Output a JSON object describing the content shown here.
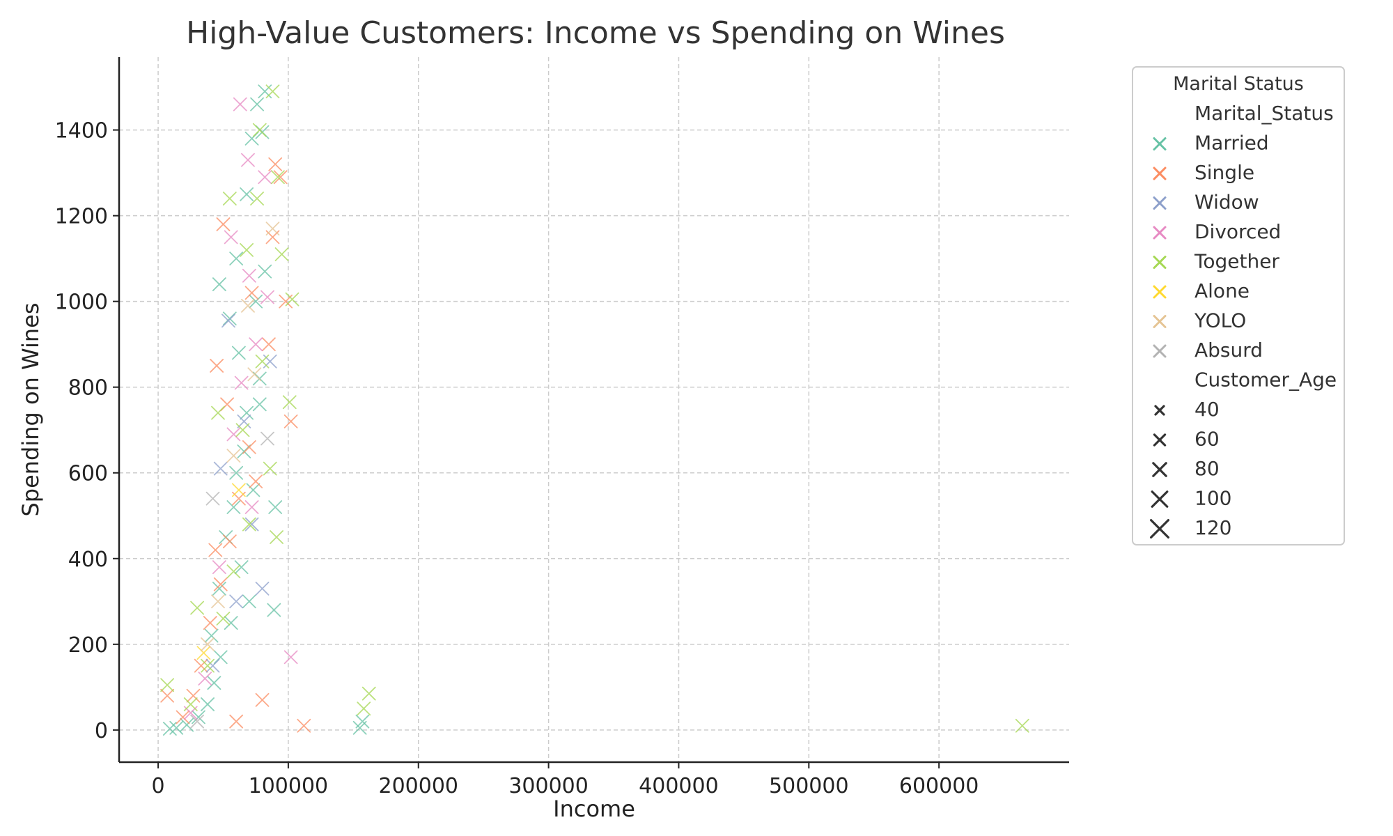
{
  "chart_data": {
    "type": "scatter",
    "title": "High-Value Customers: Income vs Spending on Wines",
    "xlabel": "Income",
    "ylabel": "Spending on Wines",
    "xlim": [
      -30000,
      700000
    ],
    "ylim": [
      -75,
      1570
    ],
    "xticks": [
      0,
      100000,
      200000,
      300000,
      400000,
      500000,
      600000
    ],
    "yticks": [
      0,
      200,
      400,
      600,
      800,
      1000,
      1200,
      1400
    ],
    "grid": true,
    "legend": {
      "title": "Marital Status",
      "placement": "outside-right",
      "hue_title": "Marital_Status",
      "size_title": "Customer_Age",
      "size_levels": [
        "40",
        "60",
        "80",
        "100",
        "120"
      ]
    },
    "marker": "x",
    "series": [
      {
        "name": "Married",
        "color": "#66c2a5",
        "points": [
          [
            82000,
            1490
          ],
          [
            76000,
            1460
          ],
          [
            72000,
            1380
          ],
          [
            80000,
            1395
          ],
          [
            60000,
            1100
          ],
          [
            47000,
            1040
          ],
          [
            68000,
            1250
          ],
          [
            82000,
            1070
          ],
          [
            75000,
            1000
          ],
          [
            55000,
            960
          ],
          [
            78000,
            820
          ],
          [
            68000,
            740
          ],
          [
            60000,
            600
          ],
          [
            73000,
            560
          ],
          [
            90000,
            520
          ],
          [
            52000,
            450
          ],
          [
            64000,
            380
          ],
          [
            70000,
            300
          ],
          [
            56000,
            250
          ],
          [
            48000,
            170
          ],
          [
            43000,
            110
          ],
          [
            38000,
            60
          ],
          [
            31000,
            30
          ],
          [
            22000,
            12
          ],
          [
            14000,
            5
          ],
          [
            9000,
            3
          ],
          [
            155000,
            5
          ],
          [
            157000,
            20
          ],
          [
            78000,
            760
          ],
          [
            66000,
            650
          ],
          [
            58000,
            520
          ],
          [
            47000,
            330
          ],
          [
            41000,
            220
          ],
          [
            89000,
            280
          ],
          [
            62000,
            880
          ]
        ]
      },
      {
        "name": "Single",
        "color": "#fc8d62",
        "points": [
          [
            90000,
            1320
          ],
          [
            94000,
            1290
          ],
          [
            88000,
            1150
          ],
          [
            50000,
            1180
          ],
          [
            72000,
            1020
          ],
          [
            98000,
            1000
          ],
          [
            102000,
            720
          ],
          [
            85000,
            900
          ],
          [
            45000,
            850
          ],
          [
            70000,
            660
          ],
          [
            62000,
            540
          ],
          [
            55000,
            440
          ],
          [
            48000,
            340
          ],
          [
            40000,
            250
          ],
          [
            33000,
            150
          ],
          [
            27000,
            80
          ],
          [
            19000,
            30
          ],
          [
            7000,
            80
          ],
          [
            112000,
            10
          ],
          [
            80000,
            70
          ],
          [
            60000,
            20
          ],
          [
            53000,
            760
          ],
          [
            75000,
            580
          ],
          [
            44000,
            420
          ]
        ]
      },
      {
        "name": "Widow",
        "color": "#8da0cb",
        "points": [
          [
            54000,
            955
          ],
          [
            86000,
            860
          ],
          [
            72000,
            480
          ],
          [
            60000,
            300
          ],
          [
            42000,
            150
          ],
          [
            66000,
            720
          ],
          [
            80000,
            330
          ],
          [
            48000,
            610
          ]
        ]
      },
      {
        "name": "Divorced",
        "color": "#e78ac3",
        "points": [
          [
            63000,
            1460
          ],
          [
            82000,
            1290
          ],
          [
            69000,
            1330
          ],
          [
            56000,
            1150
          ],
          [
            70000,
            1060
          ],
          [
            84000,
            1010
          ],
          [
            64000,
            810
          ],
          [
            58000,
            690
          ],
          [
            72000,
            520
          ],
          [
            102000,
            170
          ],
          [
            47000,
            380
          ],
          [
            36000,
            120
          ],
          [
            25000,
            40
          ],
          [
            75000,
            900
          ]
        ]
      },
      {
        "name": "Together",
        "color": "#a6d854",
        "points": [
          [
            88000,
            1490
          ],
          [
            78000,
            1400
          ],
          [
            92000,
            1290
          ],
          [
            76000,
            1240
          ],
          [
            55000,
            1240
          ],
          [
            95000,
            1110
          ],
          [
            103000,
            1005
          ],
          [
            68000,
            1120
          ],
          [
            101000,
            765
          ],
          [
            46000,
            740
          ],
          [
            86000,
            610
          ],
          [
            70000,
            480
          ],
          [
            58000,
            370
          ],
          [
            50000,
            260
          ],
          [
            38000,
            150
          ],
          [
            30000,
            285
          ],
          [
            25000,
            60
          ],
          [
            7000,
            105
          ],
          [
            162000,
            85
          ],
          [
            158000,
            50
          ],
          [
            664000,
            10
          ],
          [
            80000,
            860
          ],
          [
            65000,
            700
          ],
          [
            91000,
            450
          ]
        ]
      },
      {
        "name": "Alone",
        "color": "#ffd92f",
        "points": [
          [
            62000,
            560
          ],
          [
            35000,
            180
          ]
        ]
      },
      {
        "name": "YOLO",
        "color": "#e5c494",
        "points": [
          [
            69000,
            990
          ],
          [
            88000,
            1170
          ],
          [
            58000,
            640
          ],
          [
            46000,
            300
          ],
          [
            74000,
            830
          ],
          [
            38000,
            200
          ]
        ]
      },
      {
        "name": "Absurd",
        "color": "#b3b3b3",
        "points": [
          [
            42000,
            540
          ],
          [
            84000,
            680
          ],
          [
            30000,
            20
          ]
        ]
      }
    ]
  }
}
